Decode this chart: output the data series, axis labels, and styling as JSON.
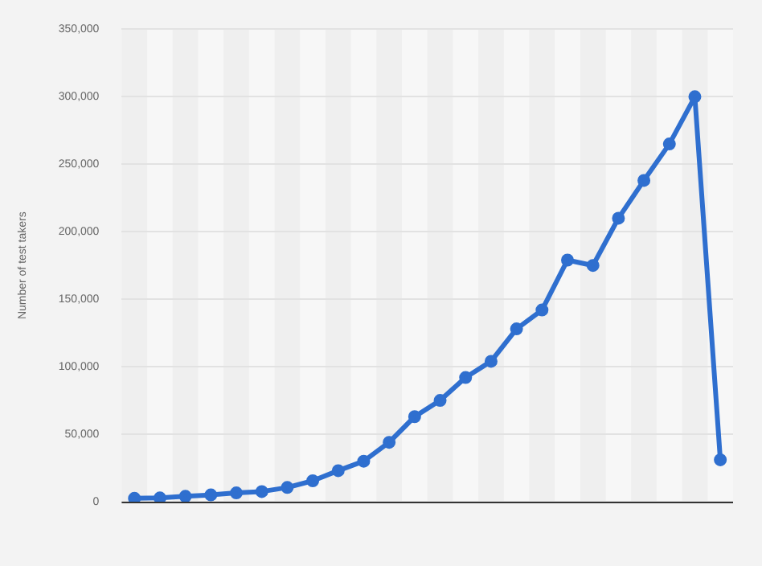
{
  "chart_data": {
    "type": "line",
    "ylabel": "Number of test takers",
    "categories": [
      null,
      null,
      null,
      null,
      null,
      null,
      null,
      null,
      null,
      null,
      null,
      null,
      null,
      null,
      null,
      null,
      null,
      null,
      null,
      null,
      null,
      null,
      null,
      null
    ],
    "series": [
      {
        "color": "#2f6fcf",
        "values": [
          2500,
          2800,
          4000,
          5000,
          6500,
          7500,
          10500,
          15500,
          23000,
          30000,
          44000,
          63000,
          75000,
          92000,
          104000,
          128000,
          142000,
          179000,
          175000,
          210000,
          238000,
          265000,
          300000,
          31000
        ]
      }
    ],
    "ylim": [
      0,
      350000
    ],
    "yticks": [
      {
        "value": 0,
        "label": "0"
      },
      {
        "value": 50000,
        "label": "50,000"
      },
      {
        "value": 100000,
        "label": "100,000"
      },
      {
        "value": 150000,
        "label": "150,000"
      },
      {
        "value": 200000,
        "label": "200,000"
      },
      {
        "value": 250000,
        "label": "250,000"
      },
      {
        "value": 300000,
        "label": "300,000"
      },
      {
        "value": 350000,
        "label": "350,000"
      }
    ],
    "grid": "y",
    "marker": "circle",
    "line_style": "solid",
    "tick_labels": "y"
  }
}
